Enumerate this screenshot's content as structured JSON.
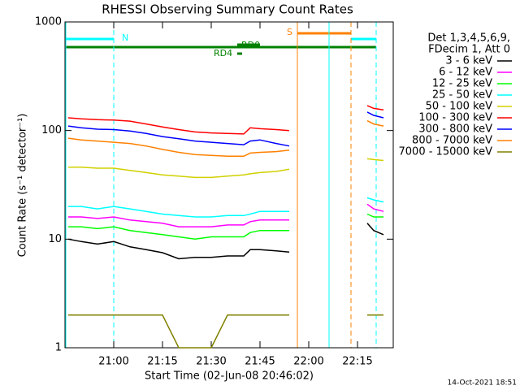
{
  "chart_data": {
    "type": "line",
    "title": "RHESSI Observing Summary Count Rates",
    "x_label": "Start Time (02-Jun-08 20:46:02)",
    "y_label": "Count Rate (s⁻¹ detector⁻¹)",
    "log_y": true,
    "xlim": [
      "20:45",
      "22:26"
    ],
    "xticks": [
      "21:00",
      "21:15",
      "21:30",
      "21:45",
      "22:00",
      "22:15"
    ],
    "ylim": [
      1,
      1000
    ],
    "yticks": [
      1,
      10,
      100,
      1000
    ],
    "legend_header": [
      "Det 1,3,4,5,6,9,",
      "FDecim 1, Att 0"
    ],
    "annotations": [
      "N",
      "S",
      "RD4",
      "RD0"
    ],
    "timestamp": "14-Oct-2021 18:51",
    "x": [
      "20:46",
      "20:50",
      "20:55",
      "21:00",
      "21:05",
      "21:10",
      "21:15",
      "21:20",
      "21:25",
      "21:30",
      "21:35",
      "21:40",
      "21:42",
      "21:45",
      "21:50",
      "21:54",
      "22:00",
      "22:18",
      "22:20",
      "22:23"
    ],
    "series": [
      {
        "name": "3 - 6 keV",
        "color": "#000000",
        "values": [
          10,
          9.5,
          9,
          9.5,
          8.5,
          8,
          7.5,
          6.6,
          6.8,
          6.8,
          7,
          7,
          8,
          8,
          7.8,
          7.6,
          null,
          14,
          12,
          11
        ]
      },
      {
        "name": "6 - 12 keV",
        "color": "#ff00ff",
        "values": [
          16,
          16,
          15.5,
          16,
          15,
          14.5,
          14,
          13,
          13,
          13,
          13.5,
          13.5,
          14.5,
          15,
          15,
          15,
          null,
          21,
          19,
          18
        ]
      },
      {
        "name": "12 - 25 keV",
        "color": "#00ff00",
        "values": [
          13,
          13,
          12.5,
          13,
          12,
          11.5,
          11,
          10.5,
          10,
          10.5,
          10.5,
          10.5,
          11.5,
          12,
          12,
          12,
          null,
          17,
          16,
          16
        ]
      },
      {
        "name": "25 - 50 keV",
        "color": "#00ffff",
        "values": [
          20,
          20,
          19,
          20,
          19,
          18,
          17,
          16.5,
          16,
          16,
          16.5,
          16.5,
          17,
          18,
          18,
          18,
          null,
          24,
          23,
          22
        ]
      },
      {
        "name": "50 - 100 keV",
        "color": "#d0d000",
        "values": [
          46,
          46,
          45,
          45,
          43,
          41,
          39,
          38,
          37,
          37,
          38,
          39,
          40,
          41,
          42,
          44,
          null,
          55,
          54,
          53
        ]
      },
      {
        "name": "100 - 300 keV",
        "color": "#ff0000",
        "values": [
          131,
          128,
          126,
          125,
          122,
          115,
          108,
          102,
          97,
          95,
          94,
          93,
          106,
          104,
          102,
          100,
          null,
          170,
          160,
          155
        ]
      },
      {
        "name": "300 - 800 keV",
        "color": "#0000ff",
        "values": [
          110,
          106,
          103,
          102,
          99,
          94,
          88,
          84,
          80,
          78,
          76,
          74,
          80,
          82,
          76,
          72,
          null,
          148,
          138,
          131
        ]
      },
      {
        "name": "800 - 7000 keV",
        "color": "#ff8000",
        "values": [
          85,
          82,
          80,
          78,
          76,
          72,
          67,
          63,
          60,
          59,
          58,
          58,
          62,
          63,
          64,
          66,
          null,
          123,
          115,
          110
        ]
      },
      {
        "name": "7000 - 15000 keV",
        "color": "#808000",
        "values": [
          2,
          2,
          2,
          2,
          2,
          2,
          2,
          1,
          1,
          1,
          2,
          2,
          2,
          2,
          2,
          2,
          null,
          2,
          2,
          2
        ]
      }
    ]
  }
}
